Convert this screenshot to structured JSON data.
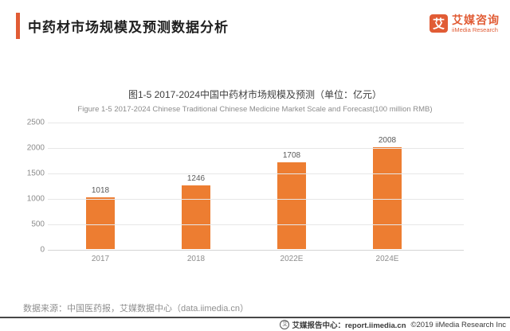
{
  "colors": {
    "accent": "#E15C35",
    "bar": "#ED7D31"
  },
  "header": {
    "title": "中药材市场规模及预测数据分析",
    "logo": {
      "mark": "艾",
      "name_cn": "艾媒咨询",
      "name_en": "iiMedia Research"
    }
  },
  "chart_data": {
    "type": "bar",
    "title": "图1-5 2017-2024中国中药材市场规模及预测（单位：亿元）",
    "subtitle": "Figure 1-5 2017-2024 Chinese Traditional Chinese Medicine Market Scale and Forecast(100 million RMB)",
    "categories": [
      "2017",
      "2018",
      "2022E",
      "2024E"
    ],
    "values": [
      1018,
      1246,
      1708,
      2008
    ],
    "xlabel": "",
    "ylabel": "",
    "ylim": [
      0,
      2500
    ],
    "yticks": [
      0,
      500,
      1000,
      1500,
      2000,
      2500
    ],
    "grid": true,
    "legend_position": "none",
    "value_labels": true,
    "bar_color": "#ED7D31"
  },
  "footer": {
    "source": "数据来源：中国医药报，艾媒数据中心（data.iimedia.cn）",
    "report_center": "艾媒报告中心：report.iimedia.cn",
    "copyright": "©2019  iiMedia Research Inc",
    "globe_icon_glyph": "艾"
  }
}
